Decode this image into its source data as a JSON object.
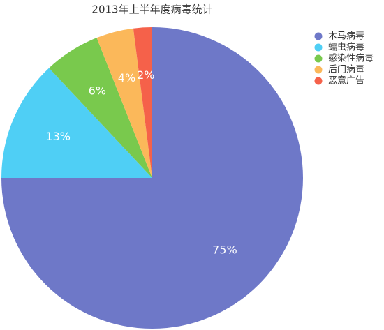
{
  "chart_data": {
    "type": "pie",
    "title": "2013年上半年度病毒统计",
    "categories": [
      "木马病毒",
      "蠕虫病毒",
      "感染性病毒",
      "后门病毒",
      "恶意广告"
    ],
    "values": [
      75,
      13,
      6,
      4,
      2
    ],
    "value_labels": [
      "75%",
      "13%",
      "6%",
      "4%",
      "2%"
    ],
    "colors": [
      "#6e78c8",
      "#4fcff5",
      "#79c94d",
      "#fbb85a",
      "#f5614a"
    ],
    "legend": "top-right"
  }
}
